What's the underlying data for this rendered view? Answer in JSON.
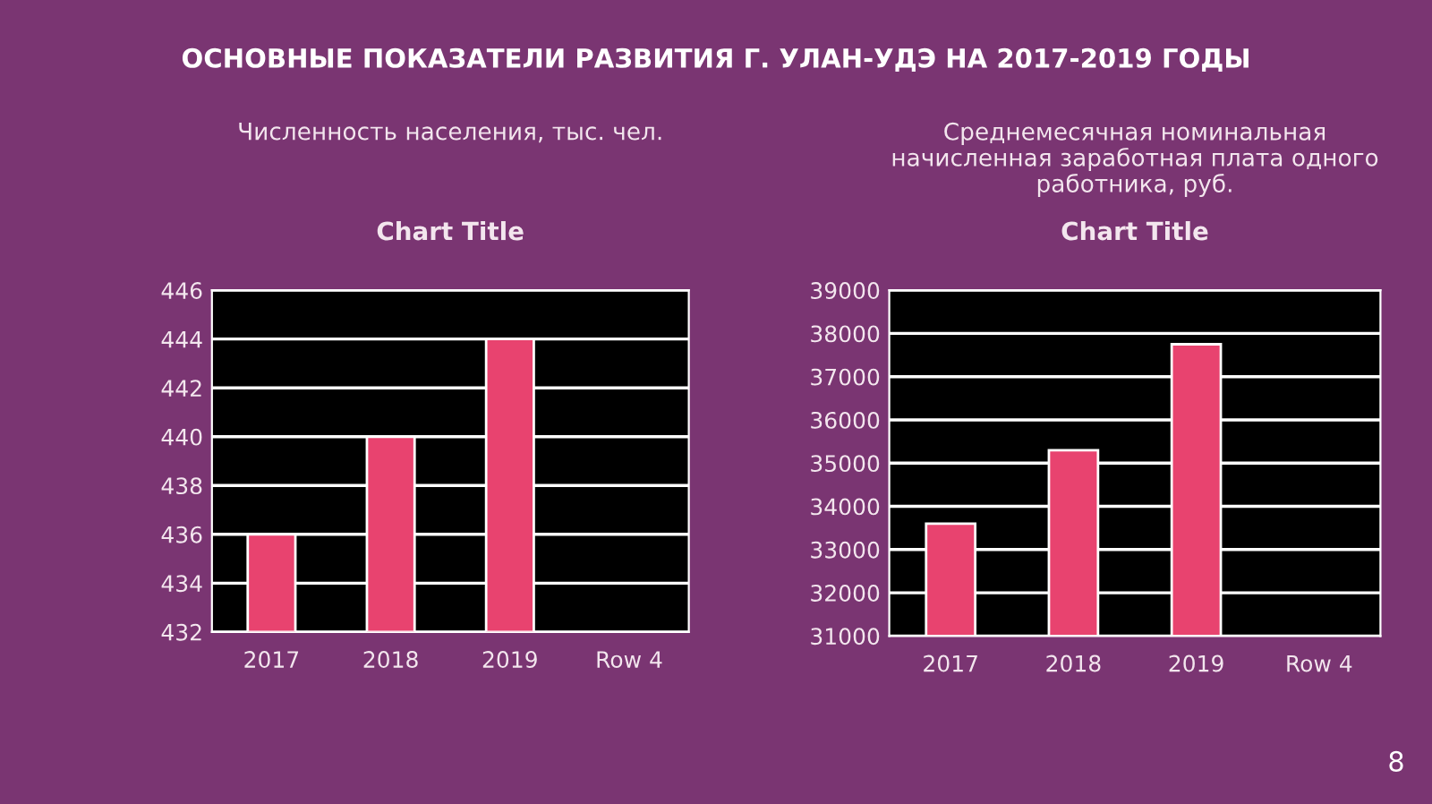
{
  "chart_data": [
    {
      "type": "bar",
      "title": "Chart Title",
      "subtitle": "Численность населения, тыс. чел.",
      "categories": [
        "2017",
        "2018",
        "2019",
        "Row 4"
      ],
      "values": [
        436,
        440,
        444,
        null
      ],
      "color": "#e8436f",
      "ylim": [
        432,
        446
      ],
      "yticks": [
        432,
        434,
        436,
        438,
        440,
        442,
        444,
        446
      ],
      "grid": "y",
      "legend": false,
      "annotations": [
        "ОСНОВНЫЕ ПОКАЗАТЕЛИ РАЗВИТИЯ Г. УЛАН-УДЭ НА 2017-2019 ГОДЫ"
      ]
    },
    {
      "type": "bar",
      "title": "Chart Title",
      "subtitle": "Среднемесячная номинальная\nначисленная заработная плата одного\nработника, руб.",
      "categories": [
        "2017",
        "2018",
        "2019",
        "Row 4"
      ],
      "values": [
        33600,
        35300,
        37750,
        null
      ],
      "color": "#e8436f",
      "ylim": [
        31000,
        39000
      ],
      "yticks": [
        31000,
        32000,
        33000,
        34000,
        35000,
        36000,
        37000,
        38000,
        39000
      ],
      "grid": "y",
      "legend": false,
      "annotations": [
        "8"
      ]
    }
  ]
}
